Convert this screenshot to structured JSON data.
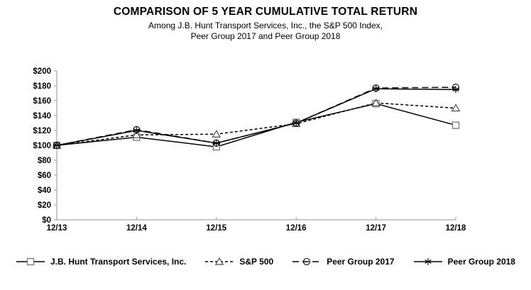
{
  "title": "COMPARISON OF 5 YEAR CUMULATIVE TOTAL RETURN",
  "subtitle_line1": "Among J.B. Hunt Transport Services, Inc., the S&P 500 Index,",
  "subtitle_line2": "Peer Group 2017 and Peer Group 2018",
  "colors": {
    "axis": "#a6a6a6",
    "line": "#000000",
    "square_marker": "#808080",
    "triangle_marker": "#4d4d4d",
    "text": "#000000"
  },
  "chart_data": {
    "type": "line",
    "categories": [
      "12/13",
      "12/14",
      "12/15",
      "12/16",
      "12/17",
      "12/18"
    ],
    "series": [
      {
        "name": "J.B. Hunt Transport Services, Inc.",
        "values": [
          100,
          111,
          98,
          131,
          156,
          127
        ],
        "line": "solid",
        "marker": "square"
      },
      {
        "name": "S&P 500",
        "values": [
          100,
          114,
          115,
          129,
          157,
          150
        ],
        "line": "dashed",
        "marker": "triangle"
      },
      {
        "name": "Peer Group 2017",
        "values": [
          100,
          121,
          103,
          130,
          177,
          178
        ],
        "line": "longdash",
        "marker": "circle"
      },
      {
        "name": "Peer Group 2018",
        "values": [
          100,
          120,
          103,
          130,
          176,
          175
        ],
        "line": "solid",
        "marker": "star"
      }
    ],
    "ylim": [
      0,
      200
    ],
    "ytick_step": 20,
    "ytick_labels": [
      "$0",
      "$20",
      "$40",
      "$60",
      "$80",
      "$100",
      "$120",
      "$140",
      "$160",
      "$180",
      "$200"
    ],
    "grid": false,
    "legend_position": "bottom"
  }
}
